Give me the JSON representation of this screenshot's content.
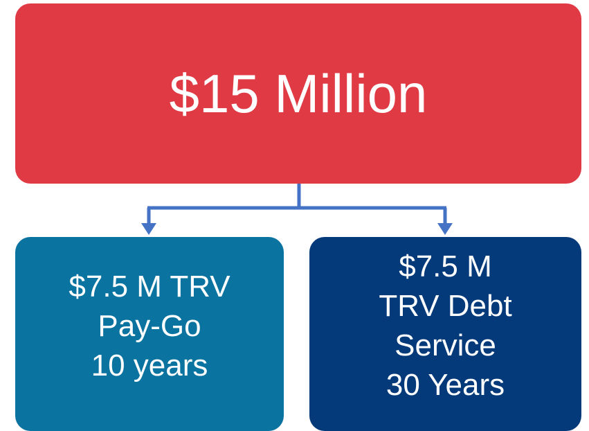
{
  "nodes": [
    {
      "lines": [
        "$15 Million"
      ]
    },
    {
      "lines": [
        "$7.5 M TRV",
        "Pay-Go",
        "10 years"
      ]
    },
    {
      "lines": [
        "$7.5 M",
        "TRV Debt",
        "Service",
        "30 Years"
      ]
    }
  ]
}
